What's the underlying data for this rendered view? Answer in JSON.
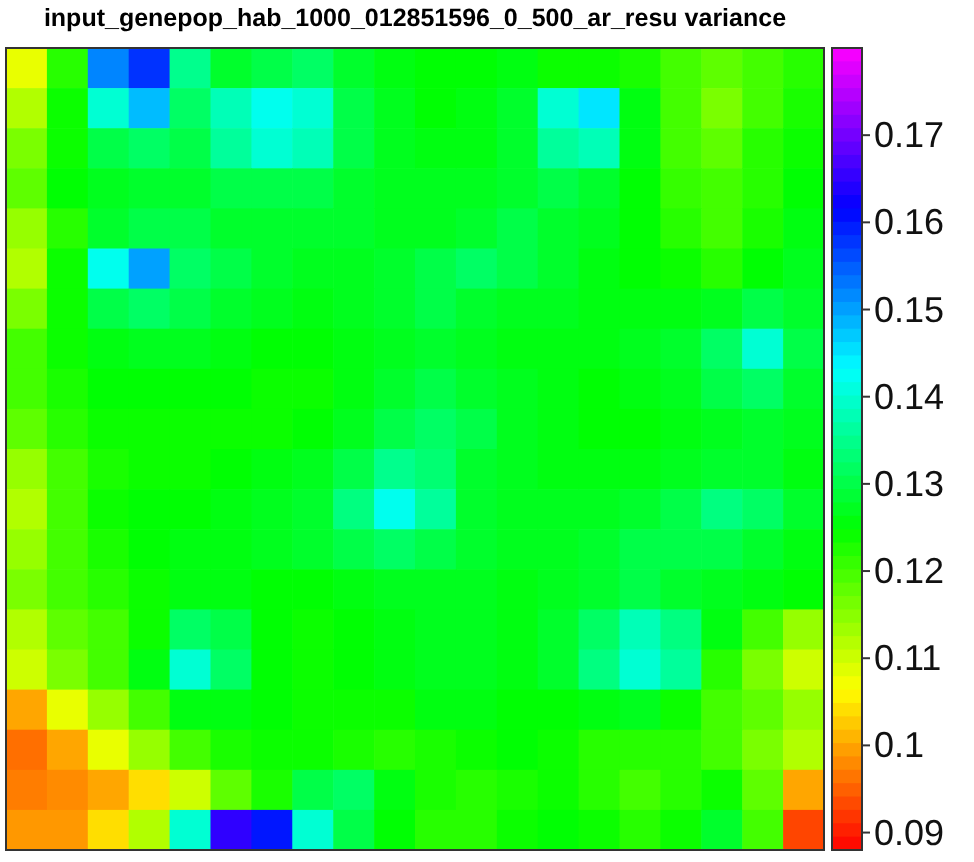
{
  "chart_data": {
    "type": "heatmap",
    "title": "input_genepop_hab_1000_012851596_0_500_ar_resu variance",
    "categories": [
      null,
      null,
      null,
      null,
      null,
      null,
      null,
      null,
      null,
      null,
      null,
      null,
      null,
      null,
      null,
      null,
      null,
      null,
      null,
      null
    ],
    "y_categories": [
      null,
      null,
      null,
      null,
      null,
      null,
      null,
      null,
      null,
      null,
      null,
      null,
      null,
      null,
      null,
      null,
      null,
      null,
      null,
      null
    ],
    "clim": [
      0.088,
      0.18
    ],
    "cticks": [
      0.09,
      0.1,
      0.11,
      0.12,
      0.13,
      0.14,
      0.15,
      0.16,
      0.17
    ],
    "cells": [
      [
        0.108,
        0.122,
        0.152,
        0.158,
        0.135,
        0.128,
        0.13,
        0.132,
        0.128,
        0.126,
        0.125,
        0.125,
        0.126,
        0.124,
        0.124,
        0.123,
        0.12,
        0.118,
        0.12,
        0.122
      ],
      [
        0.112,
        0.124,
        0.14,
        0.148,
        0.132,
        0.138,
        0.142,
        0.14,
        0.13,
        0.127,
        0.125,
        0.126,
        0.128,
        0.14,
        0.145,
        0.126,
        0.12,
        0.116,
        0.12,
        0.123
      ],
      [
        0.116,
        0.124,
        0.13,
        0.132,
        0.13,
        0.136,
        0.14,
        0.138,
        0.13,
        0.127,
        0.126,
        0.126,
        0.128,
        0.136,
        0.138,
        0.126,
        0.12,
        0.118,
        0.122,
        0.124
      ],
      [
        0.118,
        0.125,
        0.127,
        0.128,
        0.128,
        0.13,
        0.13,
        0.13,
        0.128,
        0.127,
        0.127,
        0.127,
        0.128,
        0.13,
        0.128,
        0.125,
        0.121,
        0.12,
        0.122,
        0.125
      ],
      [
        0.114,
        0.122,
        0.128,
        0.13,
        0.13,
        0.128,
        0.128,
        0.128,
        0.128,
        0.127,
        0.127,
        0.128,
        0.13,
        0.128,
        0.127,
        0.125,
        0.122,
        0.12,
        0.123,
        0.126
      ],
      [
        0.112,
        0.124,
        0.142,
        0.15,
        0.132,
        0.13,
        0.128,
        0.127,
        0.127,
        0.128,
        0.13,
        0.132,
        0.13,
        0.128,
        0.126,
        0.125,
        0.124,
        0.122,
        0.125,
        0.127
      ],
      [
        0.116,
        0.124,
        0.13,
        0.132,
        0.13,
        0.128,
        0.127,
        0.126,
        0.127,
        0.128,
        0.13,
        0.128,
        0.127,
        0.127,
        0.126,
        0.126,
        0.126,
        0.127,
        0.13,
        0.128
      ],
      [
        0.12,
        0.124,
        0.126,
        0.127,
        0.127,
        0.126,
        0.125,
        0.125,
        0.126,
        0.127,
        0.128,
        0.127,
        0.126,
        0.126,
        0.126,
        0.127,
        0.128,
        0.132,
        0.14,
        0.13
      ],
      [
        0.12,
        0.123,
        0.125,
        0.125,
        0.125,
        0.125,
        0.124,
        0.124,
        0.126,
        0.128,
        0.13,
        0.128,
        0.127,
        0.126,
        0.125,
        0.126,
        0.127,
        0.13,
        0.132,
        0.128
      ],
      [
        0.118,
        0.122,
        0.124,
        0.124,
        0.124,
        0.124,
        0.124,
        0.125,
        0.127,
        0.13,
        0.132,
        0.13,
        0.127,
        0.126,
        0.125,
        0.125,
        0.126,
        0.127,
        0.128,
        0.127
      ],
      [
        0.114,
        0.12,
        0.123,
        0.124,
        0.124,
        0.125,
        0.126,
        0.127,
        0.13,
        0.135,
        0.133,
        0.128,
        0.127,
        0.126,
        0.126,
        0.126,
        0.127,
        0.128,
        0.128,
        0.126
      ],
      [
        0.112,
        0.12,
        0.124,
        0.125,
        0.125,
        0.126,
        0.127,
        0.128,
        0.134,
        0.142,
        0.136,
        0.128,
        0.127,
        0.127,
        0.127,
        0.128,
        0.13,
        0.134,
        0.132,
        0.128
      ],
      [
        0.114,
        0.12,
        0.123,
        0.125,
        0.126,
        0.126,
        0.127,
        0.128,
        0.13,
        0.132,
        0.13,
        0.128,
        0.127,
        0.127,
        0.128,
        0.13,
        0.13,
        0.13,
        0.128,
        0.126
      ],
      [
        0.116,
        0.12,
        0.122,
        0.124,
        0.126,
        0.126,
        0.125,
        0.125,
        0.126,
        0.127,
        0.127,
        0.127,
        0.126,
        0.127,
        0.128,
        0.13,
        0.128,
        0.127,
        0.126,
        0.125
      ],
      [
        0.112,
        0.118,
        0.12,
        0.124,
        0.132,
        0.13,
        0.125,
        0.124,
        0.125,
        0.126,
        0.127,
        0.127,
        0.126,
        0.128,
        0.132,
        0.138,
        0.134,
        0.126,
        0.12,
        0.114
      ],
      [
        0.11,
        0.116,
        0.12,
        0.126,
        0.14,
        0.132,
        0.125,
        0.124,
        0.125,
        0.126,
        0.127,
        0.127,
        0.126,
        0.128,
        0.134,
        0.14,
        0.136,
        0.122,
        0.116,
        0.11
      ],
      [
        0.1,
        0.108,
        0.114,
        0.12,
        0.126,
        0.126,
        0.125,
        0.124,
        0.124,
        0.124,
        0.126,
        0.126,
        0.125,
        0.125,
        0.126,
        0.127,
        0.124,
        0.12,
        0.118,
        0.114
      ],
      [
        0.096,
        0.1,
        0.108,
        0.114,
        0.12,
        0.123,
        0.124,
        0.124,
        0.123,
        0.122,
        0.123,
        0.124,
        0.125,
        0.124,
        0.122,
        0.122,
        0.122,
        0.12,
        0.116,
        0.112
      ],
      [
        0.097,
        0.098,
        0.1,
        0.104,
        0.11,
        0.118,
        0.123,
        0.13,
        0.132,
        0.126,
        0.123,
        0.122,
        0.123,
        0.124,
        0.122,
        0.12,
        0.122,
        0.124,
        0.118,
        0.1
      ],
      [
        0.099,
        0.099,
        0.104,
        0.112,
        0.14,
        0.165,
        0.16,
        0.14,
        0.13,
        0.125,
        0.122,
        0.122,
        0.124,
        0.125,
        0.124,
        0.122,
        0.124,
        0.128,
        0.12,
        0.093
      ]
    ]
  }
}
